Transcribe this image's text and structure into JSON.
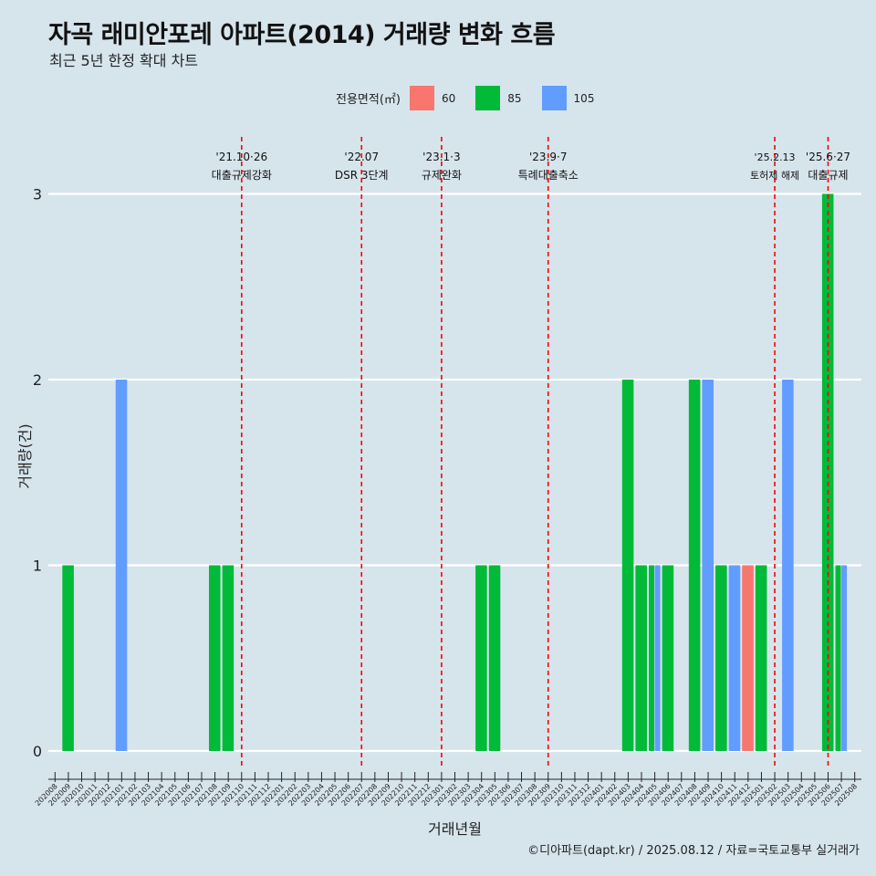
{
  "title": "자곡 래미안포레 아파트(2014) 거래량 변화 흐름",
  "subtitle": "최근 5년 한정 확대 차트",
  "caption": "©디아파트(dapt.kr) / 2025.08.12 / 자료=국토교통부 실거래가",
  "legend": {
    "title": "전용면적(㎡)",
    "items": [
      {
        "label": "60",
        "color": "#f8766d"
      },
      {
        "label": "85",
        "color": "#00ba38"
      },
      {
        "label": "105",
        "color": "#619cff"
      }
    ]
  },
  "chart_data": {
    "type": "bar",
    "xlabel": "거래년월",
    "ylabel": "거래량(건)",
    "ylim": [
      0,
      3
    ],
    "yticks": [
      0,
      1,
      2,
      3
    ],
    "grid": true,
    "legend_position": "top",
    "categories": [
      "202008",
      "202009",
      "202010",
      "202011",
      "202012",
      "202101",
      "202102",
      "202103",
      "202104",
      "202105",
      "202106",
      "202107",
      "202108",
      "202109",
      "202110",
      "202111",
      "202112",
      "202201",
      "202202",
      "202203",
      "202204",
      "202205",
      "202206",
      "202207",
      "202208",
      "202209",
      "202210",
      "202211",
      "202212",
      "202301",
      "202302",
      "202303",
      "202304",
      "202305",
      "202306",
      "202307",
      "202308",
      "202309",
      "202310",
      "202311",
      "202312",
      "202401",
      "202402",
      "202403",
      "202404",
      "202405",
      "202406",
      "202407",
      "202408",
      "202409",
      "202410",
      "202411",
      "202412",
      "202501",
      "202502",
      "202503",
      "202504",
      "202505",
      "202506",
      "202507",
      "202508"
    ],
    "series": [
      {
        "name": "60",
        "color": "#f8766d",
        "values": {
          "202412": 1
        }
      },
      {
        "name": "85",
        "color": "#00ba38",
        "values": {
          "202009": 1,
          "202108": 1,
          "202109": 1,
          "202304": 1,
          "202305": 1,
          "202403": 2,
          "202404": 1,
          "202405": 1,
          "202406": 1,
          "202408": 2,
          "202410": 1,
          "202501": 1,
          "202506": 3,
          "202507": 1
        }
      },
      {
        "name": "105",
        "color": "#619cff",
        "values": {
          "202101": 2,
          "202405": 1,
          "202409": 2,
          "202411": 1,
          "202503": 2,
          "202507": 1
        }
      }
    ],
    "annotations": [
      {
        "x": "202110",
        "date": "'21.10·26",
        "label": "대출규제강화"
      },
      {
        "x": "202207",
        "date": "'22.07",
        "label": "DSR 3단계"
      },
      {
        "x": "202301",
        "date": "'23.1·3",
        "label": "규제완화"
      },
      {
        "x": "202309",
        "date": "'23.9·7",
        "label": "특례대출축소"
      },
      {
        "x": "202502",
        "date": "'25.2.13",
        "label": "토허제 해제"
      },
      {
        "x": "202506",
        "date": "'25.6·27",
        "label": "대출규제"
      }
    ]
  }
}
